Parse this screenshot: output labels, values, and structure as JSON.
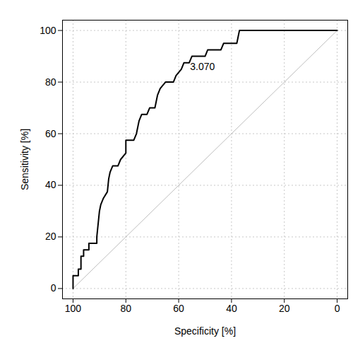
{
  "chart_data": {
    "type": "line",
    "xlabel": "Specificity [%]",
    "ylabel": "Sensitivity [%]",
    "x": [
      100,
      100,
      98,
      98,
      97,
      97,
      96,
      96,
      94,
      94,
      91,
      91,
      90.5,
      90,
      89.5,
      88.5,
      87,
      86.5,
      86,
      85,
      83,
      82,
      80,
      80,
      77,
      76,
      75,
      74,
      72,
      71,
      69,
      68,
      67,
      65,
      62,
      61,
      59,
      58,
      56,
      55,
      50,
      49,
      44,
      43,
      38,
      37.5,
      37,
      0
    ],
    "values": [
      0,
      5,
      5,
      7.5,
      7.5,
      12.5,
      12.5,
      15,
      15,
      17.5,
      17.5,
      20,
      25,
      30,
      32.5,
      35,
      37.5,
      42.5,
      45,
      47.5,
      47.5,
      50,
      52.5,
      57.5,
      57.5,
      60,
      65,
      67.5,
      67.5,
      70,
      70,
      75,
      77.5,
      80,
      80,
      82.5,
      85,
      87.5,
      87.5,
      90,
      90,
      92.5,
      92.5,
      95,
      95,
      97.5,
      100,
      100
    ],
    "color": "#000000",
    "reference_line": {
      "x": [
        100,
        0
      ],
      "y": [
        0,
        100
      ],
      "color": "#bebebe"
    },
    "annotations": [
      {
        "text": "3.070",
        "x": 51,
        "y": 86
      }
    ],
    "xlim": [
      104,
      -4
    ],
    "ylim": [
      -4,
      104
    ],
    "xticks": [
      100,
      80,
      60,
      40,
      20,
      0
    ],
    "yticks": [
      0,
      20,
      40,
      60,
      80,
      100
    ],
    "grid": true
  }
}
